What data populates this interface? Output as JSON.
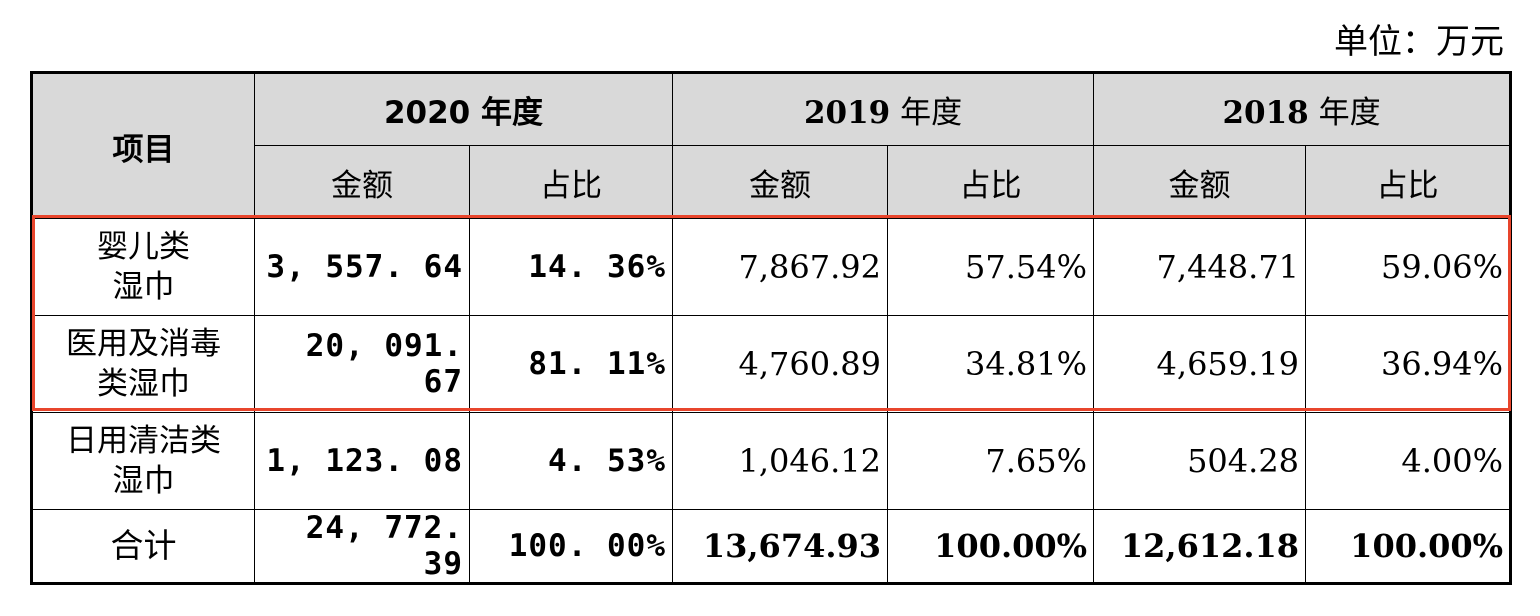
{
  "unit": "单位：万元",
  "header": {
    "item": "项目",
    "years": [
      {
        "year": "2020",
        "suffix": " 年度"
      },
      {
        "year": "2019",
        "suffix": " 年度"
      },
      {
        "year": "2018",
        "suffix": " 年度"
      }
    ],
    "amount": "金额",
    "ratio": "占比"
  },
  "rows": [
    {
      "item_lines": [
        "婴儿类",
        "湿巾"
      ],
      "values": [
        "3, 557. 64",
        "14. 36%",
        "7,867.92",
        "57.54%",
        "7,448.71",
        "59.06%"
      ]
    },
    {
      "item_lines": [
        "医用及消毒",
        "类湿巾"
      ],
      "values": [
        "20, 091. 67",
        "81. 11%",
        "4,760.89",
        "34.81%",
        "4,659.19",
        "36.94%"
      ]
    },
    {
      "item_lines": [
        "日用清洁类",
        "湿巾"
      ],
      "values": [
        "1, 123. 08",
        "4. 53%",
        "1,046.12",
        "7.65%",
        "504.28",
        "4.00%"
      ]
    }
  ],
  "total": {
    "item": "合计",
    "values": [
      "24, 772. 39",
      "100. 00%",
      "13,674.93",
      "100.00%",
      "12,612.18",
      "100.00%"
    ]
  },
  "colors": {
    "header_bg": "#d9d9d9",
    "highlight": "#e8452c"
  }
}
